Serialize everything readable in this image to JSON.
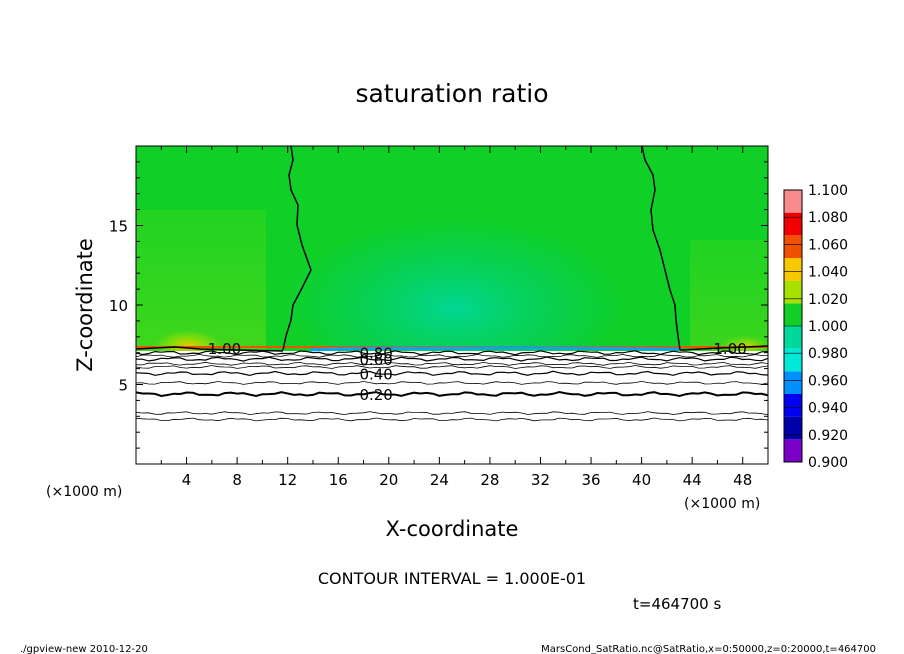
{
  "chart_data": {
    "type": "heatmap",
    "title": "saturation ratio",
    "xlabel": "X-coordinate",
    "ylabel": "Z-coordinate",
    "x_unit": "(×1000 m)",
    "x_unit_right": "(×1000 m)",
    "xlim": [
      0,
      50
    ],
    "ylim": [
      0,
      20
    ],
    "xticks": [
      4,
      8,
      12,
      16,
      20,
      24,
      28,
      32,
      36,
      40,
      44,
      48
    ],
    "yticks": [
      5,
      10,
      15
    ],
    "colorbar": {
      "levels": [
        0.9,
        0.92,
        0.94,
        0.96,
        0.98,
        1.0,
        1.02,
        1.04,
        1.06,
        1.08,
        1.1
      ],
      "labels": [
        "0.900",
        "0.920",
        "0.940",
        "0.960",
        "0.980",
        "1.000",
        "1.020",
        "1.040",
        "1.060",
        "1.080",
        "1.100"
      ],
      "colors": [
        "#7a00c8",
        "#0000a8",
        "#0000f0",
        "#0090ff",
        "#00e8d8",
        "#00d8a0",
        "#10d028",
        "#a8e000",
        "#f8c800",
        "#f05000",
        "#f00000",
        "#f88c8c"
      ]
    },
    "contours": [
      {
        "value": 0.2,
        "label": "0.20",
        "z": 4.4,
        "label_x": 19,
        "bold": true
      },
      {
        "value": 0.4,
        "label": "0.40",
        "z": 5.7,
        "label_x": 19,
        "bold": false
      },
      {
        "value": 0.6,
        "label": "0.60",
        "z": 6.6,
        "label_x": 19,
        "bold": false
      },
      {
        "value": 0.8,
        "label": "0.80",
        "z": 7.0,
        "label_x": 19,
        "bold": false
      },
      {
        "value": 1.0,
        "label": "1.00",
        "z": 7.3,
        "label_x": 7,
        "bold": true
      },
      {
        "value": 1.0,
        "label": "1.00",
        "z": 7.3,
        "label_x": 47,
        "bold": true
      }
    ],
    "boundary_z": 7.2,
    "contour_interval_text": "CONTOUR INTERVAL = 1.000E-01",
    "time_text": "t=464700 s"
  },
  "footer": {
    "left": "./gpview-new  2010-12-20",
    "right": "MarsCond_SatRatio.nc@SatRatio,x=0:50000,z=0:20000,t=464700"
  }
}
